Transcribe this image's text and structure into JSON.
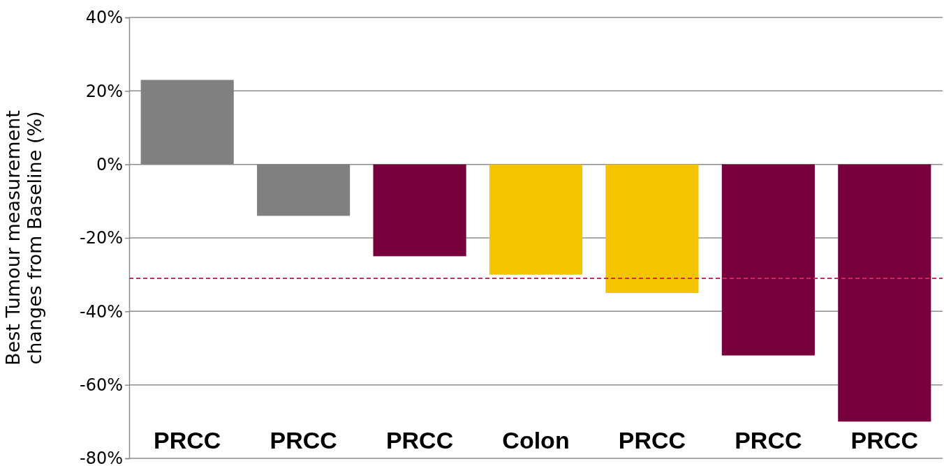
{
  "chart_data": {
    "type": "bar",
    "ylabel": "Best Tumour measurement changes from Baseline (%)",
    "categories": [
      "PRCC",
      "PRCC",
      "PRCC",
      "Colon",
      "PRCC",
      "PRCC",
      "PRCC"
    ],
    "values": [
      23,
      -14,
      -25,
      -30,
      -35,
      -52,
      -70
    ],
    "colors": [
      "#808080",
      "#808080",
      "#76003c",
      "#f5c400",
      "#f5c400",
      "#76003c",
      "#76003c"
    ],
    "ylim": [
      -80,
      40
    ],
    "yticks": [
      {
        "value": -80,
        "label": "-80%"
      },
      {
        "value": -60,
        "label": "-60%"
      },
      {
        "value": -40,
        "label": "-40%"
      },
      {
        "value": -20,
        "label": "-20%"
      },
      {
        "value": 0,
        "label": "0%"
      },
      {
        "value": 20,
        "label": "20%"
      },
      {
        "value": 40,
        "label": "40%"
      }
    ],
    "grid": "y",
    "ref_lines": [
      {
        "axis": "y",
        "value": -31,
        "color": "#d6245f",
        "line_style": "dashed"
      }
    ]
  }
}
